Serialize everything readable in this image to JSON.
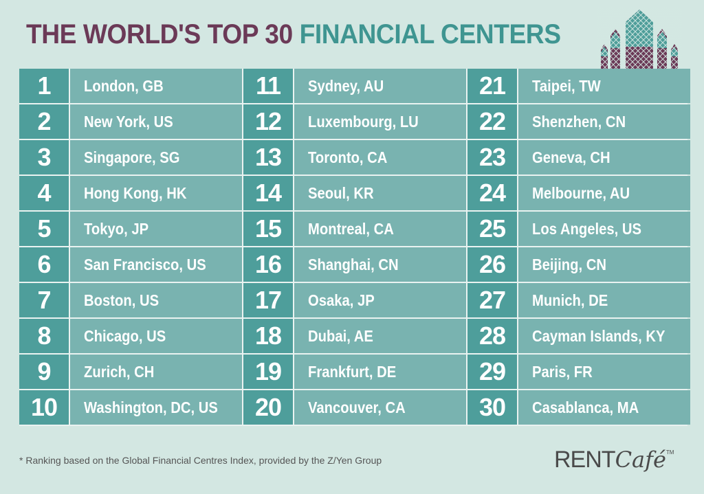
{
  "title": {
    "part1": "THE WORLD'S TOP 30",
    "part2": "FINANCIAL CENTERS"
  },
  "colors": {
    "title_dark": "#6b3a57",
    "title_teal": "#3f9591",
    "number_cell": "#4e9e9b",
    "city_cell": "#79b3b0",
    "background": "#d3e7e2"
  },
  "rankings": [
    {
      "rank": "1",
      "city": "London, GB"
    },
    {
      "rank": "11",
      "city": "Sydney, AU"
    },
    {
      "rank": "21",
      "city": "Taipei, TW"
    },
    {
      "rank": "2",
      "city": "New York, US"
    },
    {
      "rank": "12",
      "city": "Luxembourg, LU"
    },
    {
      "rank": "22",
      "city": "Shenzhen, CN"
    },
    {
      "rank": "3",
      "city": "Singapore, SG"
    },
    {
      "rank": "13",
      "city": "Toronto, CA"
    },
    {
      "rank": "23",
      "city": "Geneva, CH"
    },
    {
      "rank": "4",
      "city": "Hong Kong, HK"
    },
    {
      "rank": "14",
      "city": "Seoul, KR"
    },
    {
      "rank": "24",
      "city": "Melbourne, AU"
    },
    {
      "rank": "5",
      "city": "Tokyo, JP"
    },
    {
      "rank": "15",
      "city": "Montreal, CA"
    },
    {
      "rank": "25",
      "city": "Los Angeles, US"
    },
    {
      "rank": "6",
      "city": "San Francisco, US"
    },
    {
      "rank": "16",
      "city": "Shanghai, CN"
    },
    {
      "rank": "26",
      "city": "Beijing, CN"
    },
    {
      "rank": "7",
      "city": "Boston, US"
    },
    {
      "rank": "17",
      "city": "Osaka, JP"
    },
    {
      "rank": "27",
      "city": "Munich, DE"
    },
    {
      "rank": "8",
      "city": "Chicago, US"
    },
    {
      "rank": "18",
      "city": "Dubai, AE"
    },
    {
      "rank": "28",
      "city": "Cayman Islands, KY"
    },
    {
      "rank": "9",
      "city": "Zurich, CH"
    },
    {
      "rank": "19",
      "city": "Frankfurt, DE"
    },
    {
      "rank": "29",
      "city": "Paris, FR"
    },
    {
      "rank": "10",
      "city": "Washington, DC, US"
    },
    {
      "rank": "20",
      "city": "Vancouver, CA"
    },
    {
      "rank": "30",
      "city": "Casablanca, MA"
    }
  ],
  "footnote": "* Ranking based on the Global Financial Centres Index, provided by the Z/Yen Group",
  "brand": {
    "rent": "RENT",
    "cafe": "Café",
    "tm": "TM"
  },
  "icons": {
    "skyline": "skyline-icon"
  }
}
